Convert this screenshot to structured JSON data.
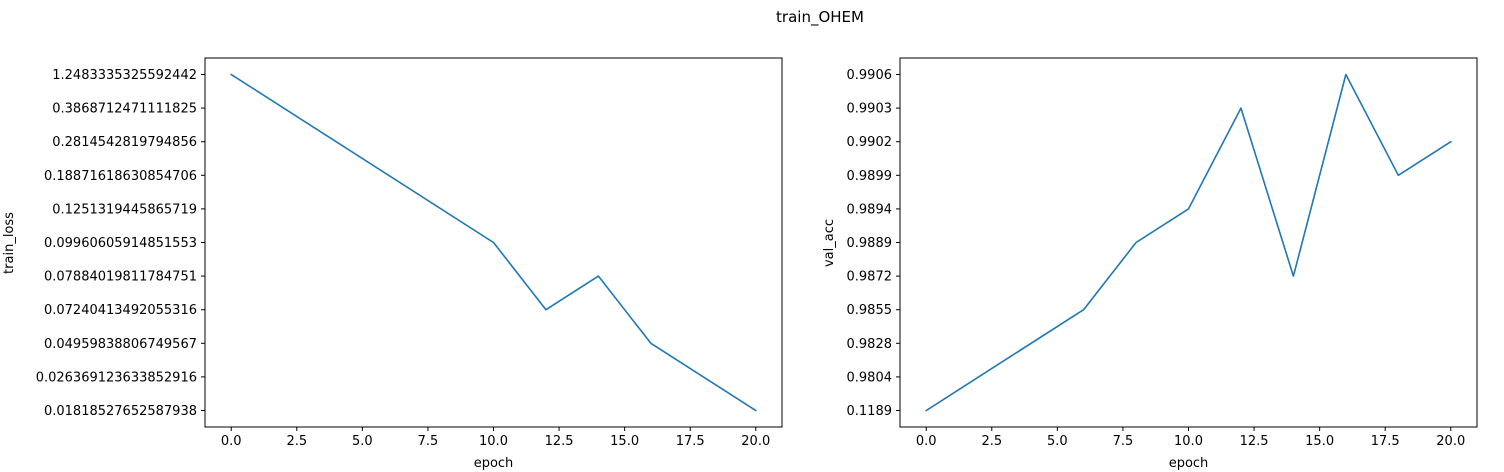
{
  "suptitle": "train_OHEM",
  "chart_data": [
    {
      "type": "line",
      "xlabel": "epoch",
      "ylabel": "train_loss",
      "xlim": [
        -1,
        21
      ],
      "x_ticks": [
        0,
        2.5,
        5,
        7.5,
        10,
        12.5,
        15,
        17.5,
        20
      ],
      "x_tick_labels": [
        "0.0",
        "2.5",
        "5.0",
        "7.5",
        "10.0",
        "12.5",
        "15.0",
        "17.5",
        "20.0"
      ],
      "y_scale": "categorical",
      "y_categories": [
        "0.01818527652587938",
        "0.026369123633852916",
        "0.04959838806749567",
        "0.07240413492055316",
        "0.07884019811784751",
        "0.09960605914851553",
        "0.1251319445865719",
        "0.18871618630854706",
        "0.2814542819794856",
        "0.3868712471111825",
        "1.2483335325592442"
      ],
      "series": [
        {
          "color": "#1f77b4",
          "x": [
            0,
            10,
            12,
            14,
            16,
            20
          ],
          "y": [
            "1.2483335325592442",
            "0.09960605914851553",
            "0.07240413492055316",
            "0.07884019811784751",
            "0.04959838806749567",
            "0.01818527652587938"
          ]
        }
      ],
      "grid": false
    },
    {
      "type": "line",
      "xlabel": "epoch",
      "ylabel": "val_acc",
      "xlim": [
        -1,
        21
      ],
      "x_ticks": [
        0,
        2.5,
        5,
        7.5,
        10,
        12.5,
        15,
        17.5,
        20
      ],
      "x_tick_labels": [
        "0.0",
        "2.5",
        "5.0",
        "7.5",
        "10.0",
        "12.5",
        "15.0",
        "17.5",
        "20.0"
      ],
      "y_scale": "categorical",
      "y_categories": [
        "0.1189",
        "0.9804",
        "0.9828",
        "0.9855",
        "0.9872",
        "0.9889",
        "0.9894",
        "0.9899",
        "0.9902",
        "0.9903",
        "0.9906"
      ],
      "series": [
        {
          "color": "#1f77b4",
          "x": [
            0,
            6,
            8,
            10,
            12,
            14,
            16,
            18,
            20
          ],
          "y": [
            "0.1189",
            "0.9855",
            "0.9889",
            "0.9894",
            "0.9903",
            "0.9872",
            "0.9906",
            "0.9899",
            "0.9902"
          ]
        }
      ],
      "grid": false
    }
  ]
}
